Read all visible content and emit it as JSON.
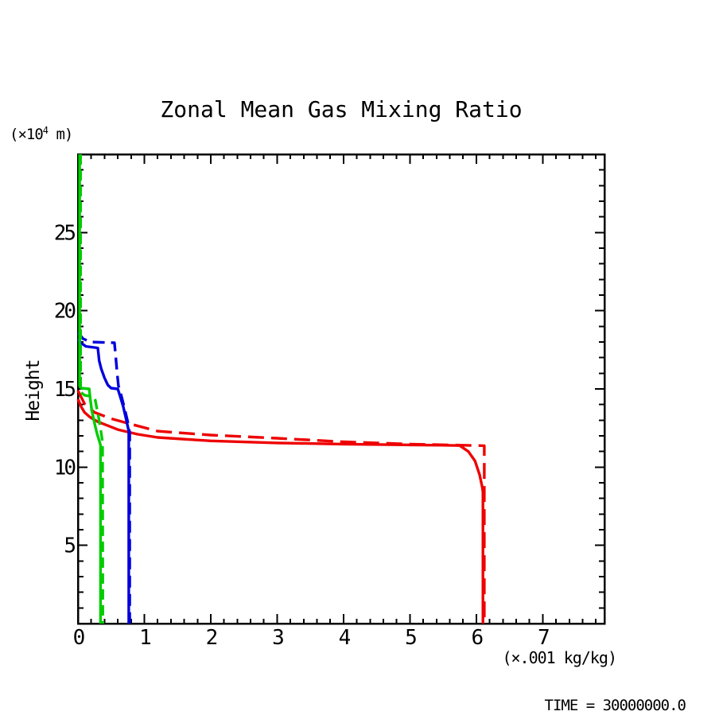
{
  "labels": {
    "y_axis_name": "Height",
    "y_unit_prefix": "(×10",
    "y_unit_sup": "4",
    "y_unit_suffix": " m)",
    "x_unit": "(×.001 kg/kg)",
    "time": "TIME = 30000000.0"
  },
  "chart_data": {
    "type": "line",
    "title": "Zonal Mean Gas Mixing Ratio",
    "xlabel": "(×.001 kg/kg)",
    "ylabel": "Height (×10⁴ m)",
    "annotation": "TIME = 30000000.0",
    "xlim": [
      0,
      7.93
    ],
    "ylim": [
      0,
      30
    ],
    "x_major_ticks": [
      0,
      1,
      2,
      3,
      4,
      5,
      6,
      7
    ],
    "x_minor_step": 0.2,
    "y_major_ticks": [
      5,
      10,
      15,
      20,
      25
    ],
    "y_minor_step": 1,
    "grid": false,
    "legend": "none",
    "frame_color": "#000000",
    "series": [
      {
        "name": "red-solid",
        "color": "#ee0000",
        "line_style": "solid",
        "points": [
          [
            0,
            14.35
          ],
          [
            0.05,
            13.85
          ],
          [
            0.1,
            13.5
          ],
          [
            0.18,
            13.2
          ],
          [
            0.3,
            12.9
          ],
          [
            0.6,
            12.4
          ],
          [
            0.9,
            12.1
          ],
          [
            1.2,
            11.9
          ],
          [
            2,
            11.68
          ],
          [
            3,
            11.55
          ],
          [
            4,
            11.47
          ],
          [
            5,
            11.42
          ],
          [
            5.5,
            11.4
          ],
          [
            5.75,
            11.38
          ],
          [
            5.88,
            11.0
          ],
          [
            5.98,
            10.4
          ],
          [
            6.05,
            9.5
          ],
          [
            6.09,
            8.7
          ],
          [
            6.1,
            8.4
          ],
          [
            6.1,
            0
          ]
        ]
      },
      {
        "name": "red-dashed",
        "color": "#ee0000",
        "line_style": "dashed",
        "points": [
          [
            0,
            14.9
          ],
          [
            0.1,
            14.05
          ],
          [
            0.25,
            13.5
          ],
          [
            0.5,
            13.1
          ],
          [
            0.8,
            12.75
          ],
          [
            1.2,
            12.3
          ],
          [
            2,
            12.05
          ],
          [
            3,
            11.85
          ],
          [
            4,
            11.62
          ],
          [
            5,
            11.47
          ],
          [
            5.8,
            11.4
          ],
          [
            6.12,
            11.37
          ],
          [
            6.12,
            0
          ]
        ]
      },
      {
        "name": "blue-solid",
        "color": "#0000dd",
        "line_style": "solid",
        "points": [
          [
            0,
            18.2
          ],
          [
            0.06,
            17.9
          ],
          [
            0.12,
            17.72
          ],
          [
            0.3,
            17.62
          ],
          [
            0.32,
            16.8
          ],
          [
            0.35,
            16.3
          ],
          [
            0.4,
            15.7
          ],
          [
            0.45,
            15.25
          ],
          [
            0.5,
            15.05
          ],
          [
            0.6,
            15.0
          ],
          [
            0.63,
            14.6
          ],
          [
            0.68,
            13.9
          ],
          [
            0.73,
            13.0
          ],
          [
            0.765,
            12.3
          ],
          [
            0.765,
            0
          ]
        ]
      },
      {
        "name": "blue-dashed",
        "color": "#0000dd",
        "line_style": "dashed",
        "points": [
          [
            0,
            18.6
          ],
          [
            0.08,
            18.2
          ],
          [
            0.2,
            18.0
          ],
          [
            0.55,
            17.95
          ],
          [
            0.57,
            17.0
          ],
          [
            0.59,
            16.0
          ],
          [
            0.61,
            15.2
          ],
          [
            0.64,
            14.8
          ],
          [
            0.7,
            13.8
          ],
          [
            0.75,
            12.9
          ],
          [
            0.78,
            12.2
          ],
          [
            0.78,
            0
          ]
        ]
      },
      {
        "name": "green-solid",
        "color": "#00cc00",
        "line_style": "solid",
        "points": [
          [
            0.025,
            30
          ],
          [
            0.025,
            15.2
          ],
          [
            0.05,
            15.05
          ],
          [
            0.17,
            15.0
          ],
          [
            0.185,
            14.4
          ],
          [
            0.21,
            13.6
          ],
          [
            0.25,
            12.8
          ],
          [
            0.29,
            12.1
          ],
          [
            0.32,
            11.7
          ],
          [
            0.34,
            11.4
          ],
          [
            0.34,
            0
          ]
        ]
      },
      {
        "name": "green-dashed",
        "color": "#00cc00",
        "line_style": "dashed",
        "points": [
          [
            0.04,
            30
          ],
          [
            0.04,
            14.8
          ],
          [
            0.1,
            14.6
          ],
          [
            0.23,
            14.5
          ],
          [
            0.26,
            14.3
          ],
          [
            0.31,
            13.2
          ],
          [
            0.35,
            12.2
          ],
          [
            0.37,
            11.6
          ],
          [
            0.375,
            0
          ]
        ]
      }
    ]
  }
}
